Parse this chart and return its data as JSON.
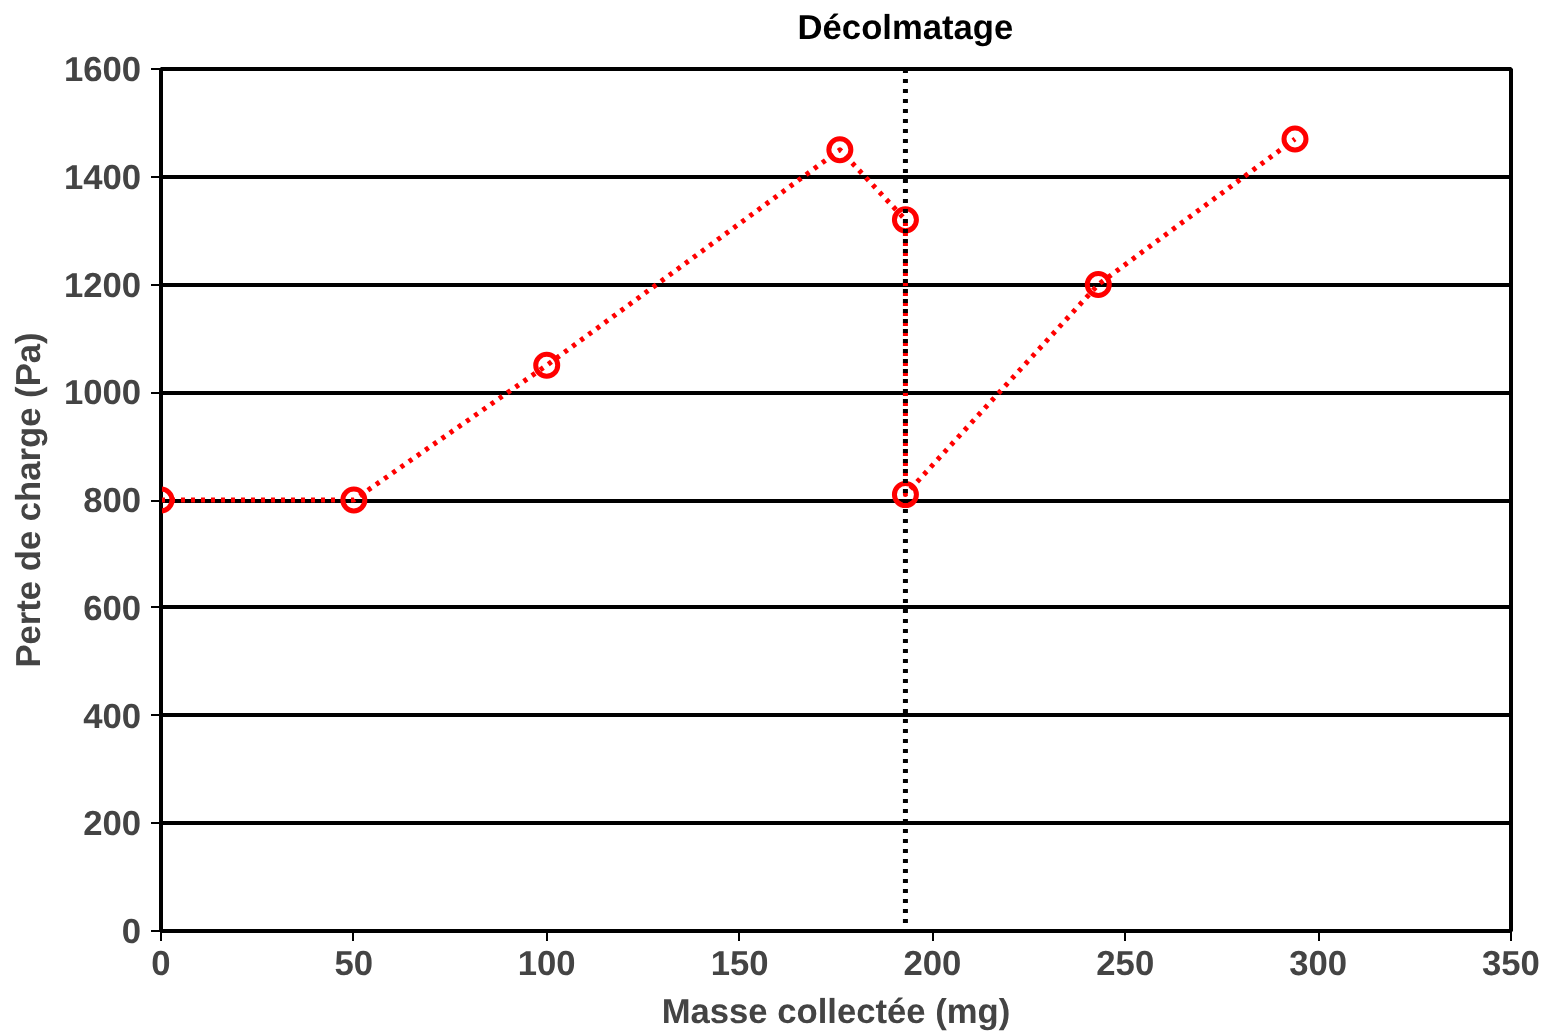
{
  "chart_data": {
    "type": "line",
    "xlabel": "Masse collectée (mg)",
    "ylabel": "Perte de charge (Pa)",
    "series": [
      {
        "color": "#ff0000",
        "x": [
          0,
          50,
          100,
          176,
          193,
          193,
          243,
          294
        ],
        "values": [
          800,
          800,
          1050,
          1450,
          1320,
          810,
          1200,
          1470
        ]
      }
    ],
    "xlim": [
      0,
      350
    ],
    "xticks": [
      0,
      50,
      100,
      150,
      200,
      250,
      300,
      350
    ],
    "ylim": [
      0,
      1600
    ],
    "yticks": [
      0,
      200,
      400,
      600,
      800,
      1000,
      1200,
      1400,
      1600
    ],
    "grid": "y",
    "marker": "circle",
    "line_style": "dotted",
    "ref_lines": [
      {
        "axis": "x",
        "value": 193,
        "label": "Décolmatage",
        "color": "#000000",
        "line_style": "dotted"
      }
    ]
  }
}
